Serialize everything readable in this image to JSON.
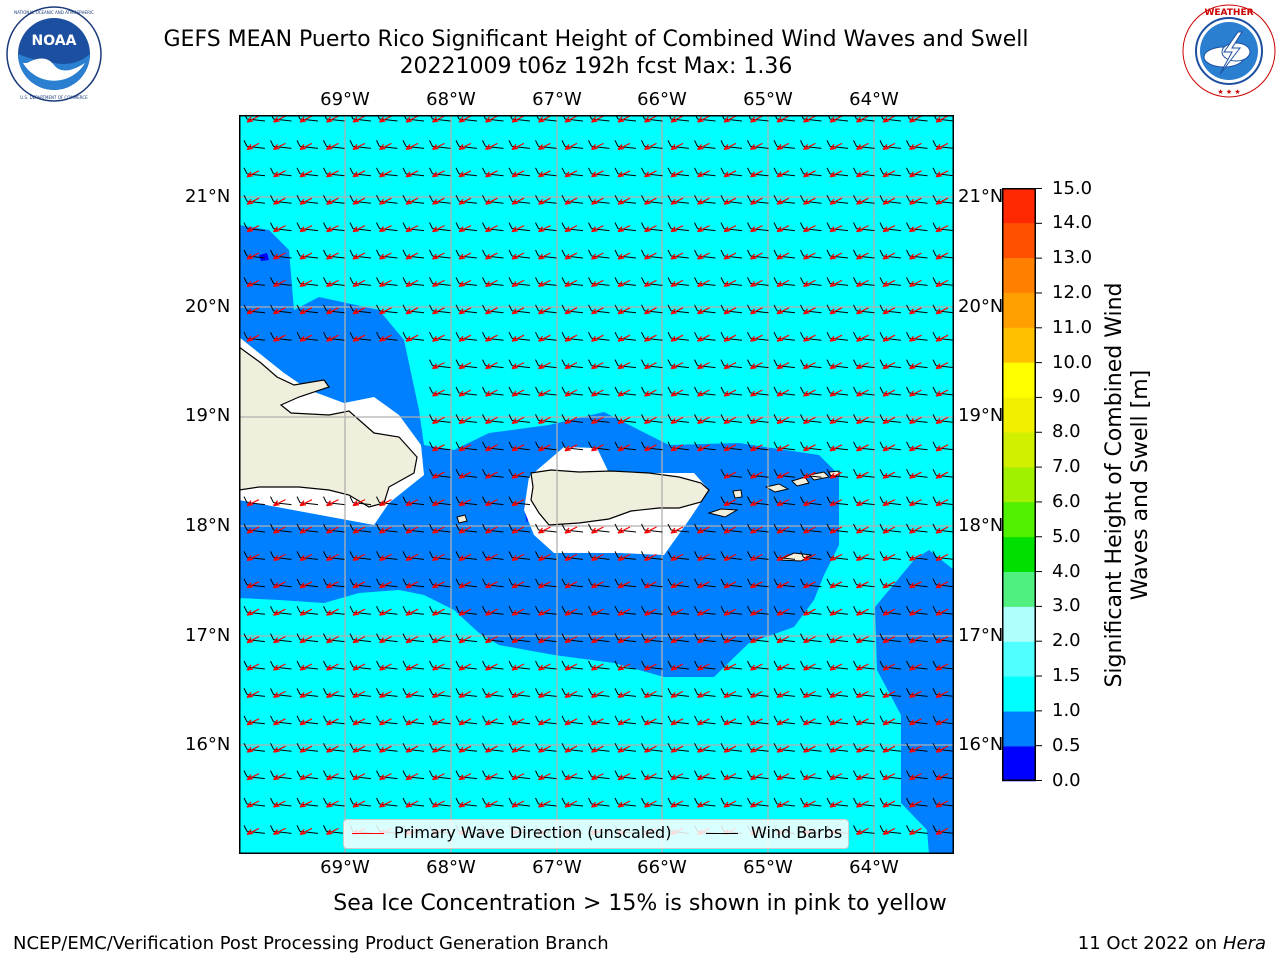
{
  "header": {
    "title_line1": "GEFS MEAN Puerto Rico Significant Height of Combined Wind Waves and Swell",
    "title_line2": "20221009 t06z 192h fcst   Max: 1.36"
  },
  "logos": {
    "left": {
      "name": "noaa-logo",
      "text": "NOAA",
      "ring_text": "NATIONAL OCEANIC AND ATMOSPHERIC ADMINISTRATION · U.S. DEPARTMENT OF COMMERCE"
    },
    "right": {
      "name": "nws-logo",
      "ring_text": "NATIONAL WEATHER SERVICE"
    }
  },
  "map": {
    "lon_labels": [
      "69°W",
      "68°W",
      "67°W",
      "66°W",
      "65°W",
      "64°W"
    ],
    "lat_labels": [
      "21°N",
      "20°N",
      "19°N",
      "18°N",
      "17°N",
      "16°N"
    ],
    "lon_range": [
      -70.0,
      -63.25
    ],
    "lat_range": [
      15.0,
      21.75
    ],
    "colors": {
      "sea": "#00ffff",
      "shallow": "#0080ff",
      "deep": "#0000ff",
      "land": "#f0eedc",
      "grid": "#b0b0b0",
      "arrow": "#ff0000",
      "barb": "#000000"
    }
  },
  "colorbar": {
    "title": "Significant Height of Combined Wind Waves and Swell [m]",
    "ticks": [
      "15.0",
      "14.0",
      "13.0",
      "12.0",
      "11.0",
      "10.0",
      "9.0",
      "8.0",
      "7.0",
      "6.0",
      "5.0",
      "4.0",
      "3.0",
      "2.0",
      "1.5",
      "1.0",
      "0.5",
      "0.0"
    ],
    "colors": [
      "#0000ff",
      "#0080ff",
      "#00ffff",
      "#50ffff",
      "#b0ffff",
      "#50f080",
      "#00e000",
      "#50f000",
      "#a0f000",
      "#d0f000",
      "#f0f000",
      "#ffff00",
      "#ffc000",
      "#ffa000",
      "#ff8000",
      "#ff5000",
      "#ff2800"
    ]
  },
  "legend": {
    "primary_wave": "Primary Wave Direction (unscaled)",
    "wind_barbs": "Wind Barbs"
  },
  "note": "Sea Ice Concentration > 15% is shown in pink to yellow",
  "footer": {
    "left": "NCEP/EMC/Verification Post Processing Product Generation Branch",
    "date": "11 Oct 2022 on",
    "host": "Hera"
  }
}
